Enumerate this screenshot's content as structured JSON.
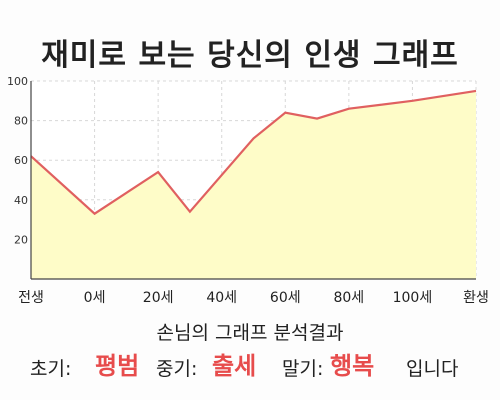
{
  "title": "재미로 보는 당신의 인생 그래프",
  "chart_data": {
    "type": "area",
    "x_tick_labels": [
      "전생",
      "0세",
      "20세",
      "40세",
      "60세",
      "80세",
      "100세",
      "환생"
    ],
    "x_tick_values": [
      -20,
      0,
      20,
      40,
      60,
      80,
      100,
      120
    ],
    "x": [
      -20,
      0,
      20,
      30,
      50,
      60,
      70,
      80,
      100,
      120
    ],
    "y": [
      62,
      33,
      54,
      34,
      71,
      84,
      81,
      86,
      90,
      95
    ],
    "ylim": [
      0,
      100
    ],
    "yticks": [
      20,
      40,
      60,
      80,
      100
    ],
    "xlim": [
      -20,
      120
    ],
    "grid": true,
    "colors": {
      "line": "#e06060",
      "fill": "#fefcc8"
    }
  },
  "summary": {
    "heading": "손님의 그래프 분석결과",
    "early_label": "초기:",
    "early_value": "평범",
    "mid_label": "중기:",
    "mid_value": "출세",
    "late_label": "말기:",
    "late_value": "행복",
    "ending": "입니다",
    "value_color": "#e74c4c"
  }
}
